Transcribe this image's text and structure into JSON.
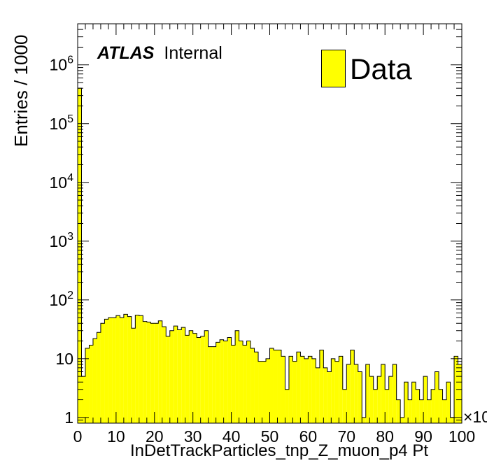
{
  "chart_data": {
    "type": "bar",
    "style": "histogram",
    "ylabel": "Entries / 1000",
    "xlabel": "InDetTrackParticles_tnp_Z_muon_p4 Pt",
    "x_multiplier": "×10",
    "y_scale": "log",
    "xlim": [
      0,
      100
    ],
    "ylim": [
      0.8,
      5000000
    ],
    "x_tick_labels": [
      "0",
      "10",
      "20",
      "30",
      "40",
      "50",
      "60",
      "70",
      "80",
      "90",
      "100"
    ],
    "y_tick_labels": [
      {
        "value": 1,
        "base": "1",
        "exp": ""
      },
      {
        "value": 10,
        "base": "10",
        "exp": ""
      },
      {
        "value": 100,
        "base": "10",
        "exp": "2"
      },
      {
        "value": 1000,
        "base": "10",
        "exp": "3"
      },
      {
        "value": 10000,
        "base": "10",
        "exp": "4"
      },
      {
        "value": 100000,
        "base": "10",
        "exp": "5"
      },
      {
        "value": 1000000,
        "base": "10",
        "exp": "6"
      }
    ],
    "bin_width": 1,
    "fill_color": "#ffff00",
    "line_color": "#000000",
    "legend": {
      "entries": [
        "Data"
      ],
      "position": "top-right"
    },
    "values": [
      400000,
      5,
      15,
      17,
      22,
      28,
      40,
      47,
      50,
      50,
      54,
      50,
      57,
      52,
      33,
      55,
      54,
      43,
      42,
      40,
      40,
      44,
      35,
      24,
      30,
      36,
      31,
      34,
      25,
      30,
      27,
      23,
      24,
      30,
      16,
      16,
      19,
      21,
      20,
      23,
      17,
      30,
      20,
      17,
      20,
      15,
      13,
      9,
      9,
      10,
      15,
      14,
      14,
      11,
      3,
      11,
      9,
      13,
      11,
      10,
      11,
      10,
      7,
      14,
      7,
      6,
      10,
      9,
      11,
      3,
      8,
      14,
      8,
      6,
      1,
      8,
      5,
      3,
      5,
      8,
      3,
      5,
      8,
      2,
      1,
      4,
      2,
      4,
      3,
      2,
      5,
      2,
      3,
      6,
      3,
      2,
      4,
      1,
      11,
      8
    ],
    "watermark": {
      "bold": "ATLAS",
      "text": "Internal"
    }
  }
}
